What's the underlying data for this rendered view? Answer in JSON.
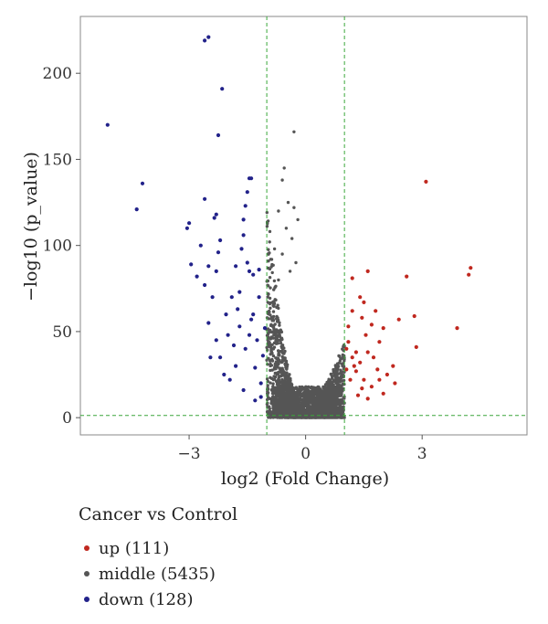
{
  "chart_data": {
    "type": "scatter",
    "title": "",
    "xlabel": "log2 (Fold Change)",
    "ylabel": "−log10 (p_value)",
    "xlim": [
      -5.8,
      5.7
    ],
    "ylim": [
      -10,
      233
    ],
    "xticks": [
      -3,
      0,
      3
    ],
    "xtick_labels": [
      "−3",
      "0",
      "3"
    ],
    "yticks": [
      0,
      50,
      100,
      150,
      200
    ],
    "ytick_labels": [
      "0",
      "50",
      "100",
      "150",
      "200"
    ],
    "grid": false,
    "thresholds": {
      "x": [
        -1,
        1
      ],
      "y": 1.3
    },
    "legend": {
      "title": "Cancer vs Control",
      "placement": "bottom-left",
      "entries": [
        {
          "key": "up",
          "label": "up (111)",
          "color": "#c0281f"
        },
        {
          "key": "middle",
          "label": "middle (5435)",
          "color": "#555555"
        },
        {
          "key": "down",
          "label": "down (128)",
          "color": "#22228a"
        }
      ]
    },
    "series": [
      {
        "name": "up (111)",
        "color": "#c0281f",
        "count": 111,
        "points": [
          [
            3.1,
            137
          ],
          [
            4.25,
            87
          ],
          [
            4.2,
            83
          ],
          [
            3.9,
            52
          ],
          [
            2.6,
            82
          ],
          [
            2.8,
            59
          ],
          [
            2.85,
            41
          ],
          [
            1.6,
            85
          ],
          [
            1.2,
            81
          ],
          [
            2.4,
            57
          ],
          [
            1.8,
            62
          ],
          [
            1.5,
            67
          ],
          [
            1.2,
            62
          ],
          [
            1.1,
            44
          ],
          [
            1.3,
            38
          ],
          [
            1.4,
            32
          ],
          [
            1.9,
            44
          ],
          [
            2.0,
            52
          ],
          [
            1.7,
            54
          ],
          [
            1.25,
            30
          ],
          [
            1.3,
            27
          ],
          [
            1.5,
            22
          ],
          [
            1.45,
            17
          ],
          [
            1.2,
            35
          ],
          [
            1.7,
            18
          ],
          [
            2.25,
            30
          ],
          [
            2.3,
            20
          ],
          [
            1.15,
            22
          ],
          [
            1.05,
            28
          ],
          [
            1.35,
            13
          ],
          [
            1.6,
            11
          ],
          [
            1.85,
            28
          ],
          [
            1.05,
            40
          ],
          [
            1.6,
            38
          ],
          [
            1.55,
            48
          ],
          [
            1.75,
            35
          ],
          [
            2.0,
            14
          ],
          [
            1.9,
            22
          ],
          [
            2.1,
            25
          ],
          [
            1.1,
            53
          ],
          [
            1.4,
            70
          ],
          [
            1.45,
            58
          ]
        ]
      },
      {
        "name": "middle (5435)",
        "color": "#555555",
        "count": 5435,
        "points": []
      },
      {
        "name": "down (128)",
        "color": "#22228a",
        "count": 128,
        "points": [
          [
            -2.6,
            219
          ],
          [
            -2.5,
            221
          ],
          [
            -2.15,
            191
          ],
          [
            -2.25,
            164
          ],
          [
            -5.1,
            170
          ],
          [
            -4.35,
            121
          ],
          [
            -4.2,
            136
          ],
          [
            -1.45,
            139
          ],
          [
            -1.4,
            139
          ],
          [
            -3.0,
            113
          ],
          [
            -2.6,
            127
          ],
          [
            -2.3,
            118
          ],
          [
            -2.35,
            116
          ],
          [
            -1.5,
            131
          ],
          [
            -1.6,
            115
          ],
          [
            -1.55,
            123
          ],
          [
            -3.05,
            110
          ],
          [
            -2.7,
            100
          ],
          [
            -2.95,
            89
          ],
          [
            -2.8,
            82
          ],
          [
            -2.5,
            88
          ],
          [
            -2.3,
            85
          ],
          [
            -2.25,
            96
          ],
          [
            -2.2,
            103
          ],
          [
            -1.6,
            106
          ],
          [
            -1.65,
            98
          ],
          [
            -2.6,
            77
          ],
          [
            -1.8,
            88
          ],
          [
            -1.5,
            90
          ],
          [
            -2.4,
            70
          ],
          [
            -1.9,
            70
          ],
          [
            -1.35,
            83
          ],
          [
            -1.7,
            73
          ],
          [
            -2.5,
            55
          ],
          [
            -2.3,
            45
          ],
          [
            -2.2,
            35
          ],
          [
            -2.0,
            48
          ],
          [
            -1.7,
            53
          ],
          [
            -1.8,
            30
          ],
          [
            -2.1,
            25
          ],
          [
            -1.55,
            40
          ],
          [
            -1.45,
            48
          ],
          [
            -1.35,
            60
          ],
          [
            -1.3,
            29
          ],
          [
            -1.15,
            20
          ],
          [
            -1.6,
            16
          ],
          [
            -1.4,
            57
          ],
          [
            -2.05,
            60
          ],
          [
            -1.85,
            42
          ],
          [
            -1.25,
            45
          ],
          [
            -1.2,
            70
          ],
          [
            -1.1,
            36
          ],
          [
            -1.2,
            86
          ],
          [
            -1.45,
            85
          ],
          [
            -1.05,
            52
          ],
          [
            -1.15,
            12
          ],
          [
            -1.3,
            10
          ],
          [
            -1.95,
            22
          ],
          [
            -2.45,
            35
          ],
          [
            -1.75,
            63
          ]
        ]
      }
    ]
  }
}
